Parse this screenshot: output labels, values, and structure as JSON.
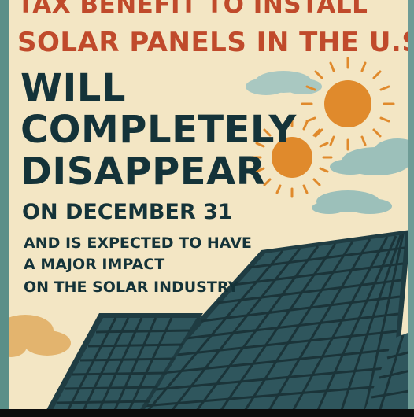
{
  "headline": {
    "line1": "TAX BENEFIT TO INSTALL",
    "line2": "SOLAR PANELS IN THE U.S.",
    "line3": "WILL",
    "line4": "COMPLETELY",
    "line5": "DISAPPEAR",
    "line6": "ON DECEMBER 31"
  },
  "subtext": {
    "line1": "AND IS EXPECTED TO HAVE",
    "line2": "A MAJOR IMPACT",
    "line3": "ON THE SOLAR INDUSTRY"
  },
  "colors": {
    "background": "#f3e6c4",
    "headline_orange": "#c04a2b",
    "headline_dark": "#143339",
    "sun": "#e08a2c",
    "cloud": "#9cc0ba",
    "panel": "#2c4f56",
    "frame": "#5b8f88"
  }
}
